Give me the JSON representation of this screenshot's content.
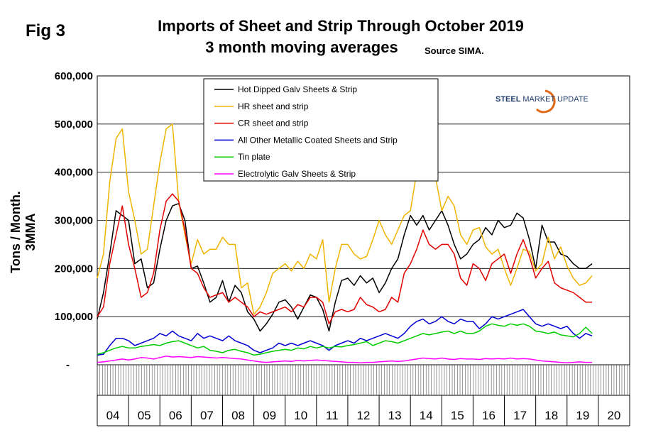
{
  "fig_label": "Fig 3",
  "title_line1": "Imports of Sheet and Strip Through October 2019",
  "title_line2": "3 month moving averages",
  "source": "Source SIMA.",
  "logo": {
    "strong": "STEEL",
    "rest": "MARKET UPDATE"
  },
  "chart_data": {
    "type": "line",
    "ylabel": "Tons / Month. 3MMA",
    "ylim": [
      0,
      600000
    ],
    "y_ticks": [
      "-",
      "100,000",
      "200,000",
      "300,000",
      "400,000",
      "500,000",
      "600,000"
    ],
    "y_tick_values": [
      0,
      100000,
      200000,
      300000,
      400000,
      500000,
      600000
    ],
    "x_categories": [
      "04",
      "05",
      "06",
      "07",
      "08",
      "09",
      "10",
      "11",
      "12",
      "13",
      "14",
      "15",
      "16",
      "17",
      "18",
      "19",
      "20"
    ],
    "x_range": [
      2004.0,
      2021.0
    ],
    "grid": "horizontal",
    "legend_placement": "top-center",
    "series": [
      {
        "name": "Hot Dipped Galv Sheets & Strip",
        "color": "#000000",
        "x": [
          2004.0,
          2004.2,
          2004.4,
          2004.6,
          2004.8,
          2005.0,
          2005.2,
          2005.4,
          2005.6,
          2005.8,
          2006.0,
          2006.2,
          2006.4,
          2006.6,
          2006.8,
          2007.0,
          2007.2,
          2007.4,
          2007.6,
          2007.8,
          2008.0,
          2008.2,
          2008.4,
          2008.6,
          2008.8,
          2009.0,
          2009.2,
          2009.4,
          2009.6,
          2009.8,
          2010.0,
          2010.2,
          2010.4,
          2010.6,
          2010.8,
          2011.0,
          2011.2,
          2011.4,
          2011.6,
          2011.8,
          2012.0,
          2012.2,
          2012.4,
          2012.6,
          2012.8,
          2013.0,
          2013.2,
          2013.4,
          2013.6,
          2013.8,
          2014.0,
          2014.2,
          2014.4,
          2014.6,
          2014.8,
          2015.0,
          2015.2,
          2015.4,
          2015.6,
          2015.8,
          2016.0,
          2016.2,
          2016.4,
          2016.6,
          2016.8,
          2017.0,
          2017.2,
          2017.4,
          2017.6,
          2017.8,
          2018.0,
          2018.2,
          2018.4,
          2018.6,
          2018.8,
          2019.0,
          2019.2,
          2019.4,
          2019.6,
          2019.8
        ],
        "y": [
          95000,
          150000,
          230000,
          320000,
          310000,
          300000,
          210000,
          220000,
          160000,
          170000,
          240000,
          300000,
          330000,
          335000,
          300000,
          200000,
          205000,
          170000,
          130000,
          140000,
          175000,
          130000,
          165000,
          150000,
          110000,
          95000,
          70000,
          85000,
          105000,
          130000,
          135000,
          120000,
          95000,
          120000,
          145000,
          140000,
          115000,
          70000,
          130000,
          175000,
          180000,
          165000,
          185000,
          170000,
          180000,
          150000,
          170000,
          200000,
          220000,
          270000,
          310000,
          290000,
          310000,
          280000,
          300000,
          320000,
          290000,
          250000,
          220000,
          230000,
          250000,
          260000,
          285000,
          270000,
          300000,
          285000,
          290000,
          315000,
          305000,
          260000,
          200000,
          290000,
          255000,
          255000,
          230000,
          225000,
          210000,
          200000,
          200000,
          210000
        ]
      },
      {
        "name": "HR sheet and strip",
        "color": "#f0b400",
        "x": [
          2004.0,
          2004.2,
          2004.4,
          2004.6,
          2004.8,
          2005.0,
          2005.2,
          2005.4,
          2005.6,
          2005.8,
          2006.0,
          2006.2,
          2006.4,
          2006.6,
          2006.8,
          2007.0,
          2007.2,
          2007.4,
          2007.6,
          2007.8,
          2008.0,
          2008.2,
          2008.4,
          2008.6,
          2008.8,
          2009.0,
          2009.2,
          2009.4,
          2009.6,
          2009.8,
          2010.0,
          2010.2,
          2010.4,
          2010.6,
          2010.8,
          2011.0,
          2011.2,
          2011.4,
          2011.6,
          2011.8,
          2012.0,
          2012.2,
          2012.4,
          2012.6,
          2012.8,
          2013.0,
          2013.2,
          2013.4,
          2013.6,
          2013.8,
          2014.0,
          2014.2,
          2014.4,
          2014.6,
          2014.8,
          2015.0,
          2015.2,
          2015.4,
          2015.6,
          2015.8,
          2016.0,
          2016.2,
          2016.4,
          2016.6,
          2016.8,
          2017.0,
          2017.2,
          2017.4,
          2017.6,
          2017.8,
          2018.0,
          2018.2,
          2018.4,
          2018.6,
          2018.8,
          2019.0,
          2019.2,
          2019.4,
          2019.6,
          2019.8
        ],
        "y": [
          180000,
          230000,
          380000,
          470000,
          490000,
          360000,
          300000,
          230000,
          240000,
          330000,
          420000,
          490000,
          500000,
          340000,
          270000,
          210000,
          260000,
          230000,
          240000,
          240000,
          265000,
          250000,
          250000,
          160000,
          170000,
          105000,
          120000,
          150000,
          190000,
          200000,
          210000,
          195000,
          215000,
          200000,
          230000,
          220000,
          260000,
          130000,
          200000,
          250000,
          250000,
          230000,
          220000,
          225000,
          260000,
          300000,
          270000,
          250000,
          280000,
          310000,
          320000,
          400000,
          420000,
          430000,
          390000,
          320000,
          350000,
          330000,
          270000,
          250000,
          280000,
          285000,
          245000,
          230000,
          240000,
          200000,
          165000,
          200000,
          240000,
          235000,
          195000,
          210000,
          265000,
          220000,
          245000,
          205000,
          180000,
          165000,
          170000,
          185000
        ]
      },
      {
        "name": "CR sheet and strip",
        "color": "#e00000",
        "x": [
          2004.0,
          2004.2,
          2004.4,
          2004.6,
          2004.8,
          2005.0,
          2005.2,
          2005.4,
          2005.6,
          2005.8,
          2006.0,
          2006.2,
          2006.4,
          2006.6,
          2006.8,
          2007.0,
          2007.2,
          2007.4,
          2007.6,
          2007.8,
          2008.0,
          2008.2,
          2008.4,
          2008.6,
          2008.8,
          2009.0,
          2009.2,
          2009.4,
          2009.6,
          2009.8,
          2010.0,
          2010.2,
          2010.4,
          2010.6,
          2010.8,
          2011.0,
          2011.2,
          2011.4,
          2011.6,
          2011.8,
          2012.0,
          2012.2,
          2012.4,
          2012.6,
          2012.8,
          2013.0,
          2013.2,
          2013.4,
          2013.6,
          2013.8,
          2014.0,
          2014.2,
          2014.4,
          2014.6,
          2014.8,
          2015.0,
          2015.2,
          2015.4,
          2015.6,
          2015.8,
          2016.0,
          2016.2,
          2016.4,
          2016.6,
          2016.8,
          2017.0,
          2017.2,
          2017.4,
          2017.6,
          2017.8,
          2018.0,
          2018.2,
          2018.4,
          2018.6,
          2018.8,
          2019.0,
          2019.2,
          2019.4,
          2019.6,
          2019.8
        ],
        "y": [
          100000,
          120000,
          210000,
          270000,
          330000,
          250000,
          200000,
          140000,
          150000,
          190000,
          280000,
          340000,
          355000,
          340000,
          280000,
          200000,
          190000,
          160000,
          140000,
          145000,
          150000,
          130000,
          140000,
          130000,
          120000,
          100000,
          110000,
          105000,
          110000,
          115000,
          120000,
          110000,
          125000,
          120000,
          140000,
          140000,
          130000,
          85000,
          110000,
          115000,
          110000,
          115000,
          140000,
          125000,
          120000,
          110000,
          115000,
          140000,
          130000,
          190000,
          210000,
          240000,
          280000,
          250000,
          240000,
          250000,
          250000,
          230000,
          180000,
          165000,
          210000,
          200000,
          175000,
          210000,
          220000,
          230000,
          190000,
          230000,
          260000,
          225000,
          180000,
          200000,
          215000,
          170000,
          160000,
          155000,
          150000,
          140000,
          130000,
          130000
        ]
      },
      {
        "name": "All Other Metallic Coated Sheets and Strip",
        "color": "#0000d0",
        "x": [
          2004.0,
          2004.2,
          2004.4,
          2004.6,
          2004.8,
          2005.0,
          2005.2,
          2005.4,
          2005.6,
          2005.8,
          2006.0,
          2006.2,
          2006.4,
          2006.6,
          2006.8,
          2007.0,
          2007.2,
          2007.4,
          2007.6,
          2007.8,
          2008.0,
          2008.2,
          2008.4,
          2008.6,
          2008.8,
          2009.0,
          2009.2,
          2009.4,
          2009.6,
          2009.8,
          2010.0,
          2010.2,
          2010.4,
          2010.6,
          2010.8,
          2011.0,
          2011.2,
          2011.4,
          2011.6,
          2011.8,
          2012.0,
          2012.2,
          2012.4,
          2012.6,
          2012.8,
          2013.0,
          2013.2,
          2013.4,
          2013.6,
          2013.8,
          2014.0,
          2014.2,
          2014.4,
          2014.6,
          2014.8,
          2015.0,
          2015.2,
          2015.4,
          2015.6,
          2015.8,
          2016.0,
          2016.2,
          2016.4,
          2016.6,
          2016.8,
          2017.0,
          2017.2,
          2017.4,
          2017.6,
          2017.8,
          2018.0,
          2018.2,
          2018.4,
          2018.6,
          2018.8,
          2019.0,
          2019.2,
          2019.4,
          2019.6,
          2019.8
        ],
        "y": [
          20000,
          22000,
          40000,
          55000,
          55000,
          50000,
          40000,
          45000,
          50000,
          55000,
          65000,
          60000,
          70000,
          60000,
          55000,
          50000,
          65000,
          55000,
          60000,
          55000,
          50000,
          60000,
          50000,
          45000,
          40000,
          30000,
          25000,
          30000,
          35000,
          45000,
          40000,
          45000,
          40000,
          45000,
          50000,
          45000,
          40000,
          30000,
          40000,
          45000,
          50000,
          45000,
          55000,
          50000,
          55000,
          60000,
          65000,
          60000,
          55000,
          65000,
          80000,
          90000,
          95000,
          85000,
          90000,
          100000,
          90000,
          85000,
          95000,
          90000,
          90000,
          75000,
          85000,
          100000,
          95000,
          100000,
          105000,
          110000,
          115000,
          100000,
          85000,
          80000,
          85000,
          80000,
          75000,
          80000,
          65000,
          55000,
          65000,
          60000
        ]
      },
      {
        "name": "Tin plate",
        "color": "#00cc00",
        "x": [
          2004.0,
          2004.2,
          2004.4,
          2004.6,
          2004.8,
          2005.0,
          2005.2,
          2005.4,
          2005.6,
          2005.8,
          2006.0,
          2006.2,
          2006.4,
          2006.6,
          2006.8,
          2007.0,
          2007.2,
          2007.4,
          2007.6,
          2007.8,
          2008.0,
          2008.2,
          2008.4,
          2008.6,
          2008.8,
          2009.0,
          2009.2,
          2009.4,
          2009.6,
          2009.8,
          2010.0,
          2010.2,
          2010.4,
          2010.6,
          2010.8,
          2011.0,
          2011.2,
          2011.4,
          2011.6,
          2011.8,
          2012.0,
          2012.2,
          2012.4,
          2012.6,
          2012.8,
          2013.0,
          2013.2,
          2013.4,
          2013.6,
          2013.8,
          2014.0,
          2014.2,
          2014.4,
          2014.6,
          2014.8,
          2015.0,
          2015.2,
          2015.4,
          2015.6,
          2015.8,
          2016.0,
          2016.2,
          2016.4,
          2016.6,
          2016.8,
          2017.0,
          2017.2,
          2017.4,
          2017.6,
          2017.8,
          2018.0,
          2018.2,
          2018.4,
          2018.6,
          2018.8,
          2019.0,
          2019.2,
          2019.4,
          2019.6,
          2019.8
        ],
        "y": [
          22000,
          25000,
          30000,
          35000,
          38000,
          35000,
          35000,
          38000,
          40000,
          42000,
          40000,
          45000,
          48000,
          50000,
          45000,
          40000,
          35000,
          38000,
          30000,
          28000,
          25000,
          30000,
          32000,
          28000,
          25000,
          20000,
          22000,
          25000,
          28000,
          30000,
          32000,
          30000,
          35000,
          33000,
          38000,
          35000,
          38000,
          35000,
          38000,
          37000,
          40000,
          42000,
          45000,
          48000,
          40000,
          45000,
          50000,
          48000,
          45000,
          50000,
          55000,
          60000,
          65000,
          62000,
          65000,
          68000,
          70000,
          65000,
          70000,
          65000,
          65000,
          70000,
          80000,
          85000,
          82000,
          80000,
          85000,
          82000,
          85000,
          80000,
          70000,
          68000,
          65000,
          68000,
          62000,
          60000,
          58000,
          65000,
          78000,
          65000
        ]
      },
      {
        "name": "Electrolytic Galv Sheets & Strip",
        "color": "#ff00ff",
        "x": [
          2004.0,
          2004.2,
          2004.4,
          2004.6,
          2004.8,
          2005.0,
          2005.2,
          2005.4,
          2005.6,
          2005.8,
          2006.0,
          2006.2,
          2006.4,
          2006.6,
          2006.8,
          2007.0,
          2007.2,
          2007.4,
          2007.6,
          2007.8,
          2008.0,
          2008.2,
          2008.4,
          2008.6,
          2008.8,
          2009.0,
          2009.2,
          2009.4,
          2009.6,
          2009.8,
          2010.0,
          2010.2,
          2010.4,
          2010.6,
          2010.8,
          2011.0,
          2011.2,
          2011.4,
          2011.6,
          2011.8,
          2012.0,
          2012.2,
          2012.4,
          2012.6,
          2012.8,
          2013.0,
          2013.2,
          2013.4,
          2013.6,
          2013.8,
          2014.0,
          2014.2,
          2014.4,
          2014.6,
          2014.8,
          2015.0,
          2015.2,
          2015.4,
          2015.6,
          2015.8,
          2016.0,
          2016.2,
          2016.4,
          2016.6,
          2016.8,
          2017.0,
          2017.2,
          2017.4,
          2017.6,
          2017.8,
          2018.0,
          2018.2,
          2018.4,
          2018.6,
          2018.8,
          2019.0,
          2019.2,
          2019.4,
          2019.6,
          2019.8
        ],
        "y": [
          5000,
          6000,
          8000,
          10000,
          12000,
          10000,
          12000,
          15000,
          14000,
          12000,
          15000,
          18000,
          16000,
          17000,
          16000,
          15000,
          17000,
          16000,
          15000,
          14000,
          15000,
          14000,
          13000,
          12000,
          10000,
          8000,
          6000,
          5000,
          6000,
          7000,
          8000,
          7000,
          9000,
          8000,
          9000,
          10000,
          9000,
          8000,
          7000,
          6000,
          5000,
          5000,
          4000,
          5000,
          5000,
          6000,
          7000,
          8000,
          7000,
          8000,
          10000,
          12000,
          14000,
          13000,
          12000,
          14000,
          12000,
          11000,
          13000,
          12000,
          12000,
          11000,
          13000,
          12000,
          13000,
          12000,
          14000,
          12000,
          13000,
          12000,
          10000,
          8000,
          7000,
          6000,
          5000,
          4000,
          5000,
          6000,
          5000,
          5000
        ]
      }
    ]
  }
}
